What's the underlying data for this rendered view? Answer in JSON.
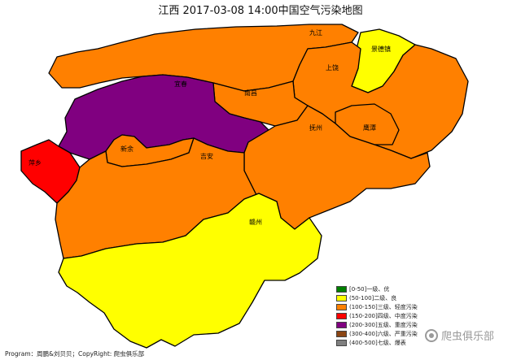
{
  "title": "江西 2017-03-08 14:00中国空气污染地图",
  "regions": [
    {
      "name": "九江",
      "level": "三级、轻度污染",
      "color": "#FF8000"
    },
    {
      "name": "景德镇",
      "level": "二级、良",
      "color": "#FFFF00"
    },
    {
      "name": "上饶",
      "level": "三级、轻度污染",
      "color": "#FF8000"
    },
    {
      "name": "南昌",
      "level": "三级、轻度污染",
      "color": "#FF8000"
    },
    {
      "name": "鹰潭",
      "level": "三级、轻度污染",
      "color": "#FF8000"
    },
    {
      "name": "抚州",
      "level": "三级、轻度污染",
      "color": "#FF8000"
    },
    {
      "name": "宜春",
      "level": "五级、重度污染",
      "color": "#800080"
    },
    {
      "name": "新余",
      "level": "三级、轻度污染",
      "color": "#FF8000"
    },
    {
      "name": "萍乡",
      "level": "四级、中度污染",
      "color": "#FF0000"
    },
    {
      "name": "吉安",
      "level": "三级、轻度污染",
      "color": "#FF8000"
    },
    {
      "name": "赣州",
      "level": "二级、良",
      "color": "#FFFF00"
    }
  ],
  "legend": [
    {
      "label": "[0-50]一级、优",
      "color": "#008000"
    },
    {
      "label": "(50-100]二级、良",
      "color": "#FFFF00"
    },
    {
      "label": "(100-150]三级、轻度污染",
      "color": "#FF8000"
    },
    {
      "label": "(150-200]四级、中度污染",
      "color": "#FF0000"
    },
    {
      "label": "(200-300]五级、重度污染",
      "color": "#800080"
    },
    {
      "label": "(300-400]六级、严重污染",
      "color": "#8B4513"
    },
    {
      "label": "(400-500]七级、爆表",
      "color": "#808080"
    }
  ],
  "footer": "Program：周鹏&刘贝贝；CopyRight: 爬虫俱乐部",
  "watermark": "爬虫俱乐部"
}
